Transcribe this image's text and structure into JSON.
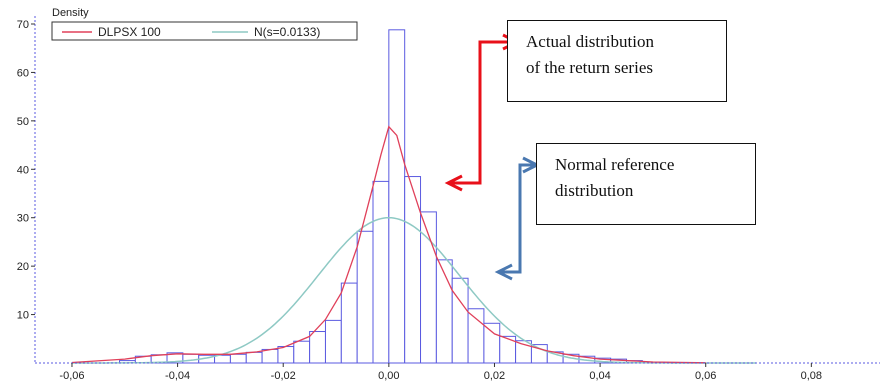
{
  "chart_data": {
    "type": "bar",
    "ylabel": "Density",
    "xlim": [
      -0.067,
      0.093
    ],
    "ylim": [
      0,
      70
    ],
    "xticks": [
      -0.06,
      -0.04,
      -0.02,
      0.0,
      0.02,
      0.04,
      0.06,
      0.08
    ],
    "xtick_labels": [
      "-0,06",
      "-0,04",
      "-0,02",
      "0,00",
      "0,02",
      "0,04",
      "0,06",
      "0,08"
    ],
    "yticks": [
      10,
      20,
      30,
      40,
      50,
      60,
      70
    ],
    "ytick_labels": [
      "10",
      "20",
      "30",
      "40",
      "50",
      "60",
      "70"
    ],
    "bin_width": 0.003,
    "histogram": {
      "bin_left": [
        -0.051,
        -0.048,
        -0.045,
        -0.042,
        -0.039,
        -0.036,
        -0.033,
        -0.03,
        -0.027,
        -0.024,
        -0.021,
        -0.018,
        -0.015,
        -0.012,
        -0.009,
        -0.006,
        -0.003,
        0.0,
        0.003,
        0.006,
        0.009,
        0.012,
        0.015,
        0.018,
        0.021,
        0.024,
        0.027,
        0.03,
        0.033,
        0.036,
        0.039,
        0.042,
        0.045
      ],
      "density": [
        0.5,
        1.4,
        1.7,
        2.1,
        1.8,
        1.6,
        1.6,
        1.8,
        2.2,
        2.8,
        3.4,
        4.5,
        6.5,
        8.8,
        16.5,
        27.2,
        37.5,
        68.8,
        38.5,
        31.2,
        21.3,
        17.5,
        11.2,
        8.2,
        5.5,
        4.6,
        3.8,
        2.3,
        1.8,
        1.4,
        1.0,
        0.8,
        0.5
      ]
    },
    "series": [
      {
        "name": "DLPSX 100",
        "color": "#e0405a",
        "x": [
          -0.06,
          -0.05,
          -0.045,
          -0.04,
          -0.035,
          -0.03,
          -0.025,
          -0.02,
          -0.015,
          -0.012,
          -0.009,
          -0.006,
          -0.003,
          -0.0015,
          0.0,
          0.0015,
          0.003,
          0.006,
          0.009,
          0.012,
          0.015,
          0.02,
          0.025,
          0.03,
          0.035,
          0.04,
          0.05,
          0.06
        ],
        "y": [
          0.1,
          0.8,
          1.5,
          1.9,
          1.8,
          1.8,
          2.3,
          3.2,
          5.5,
          9.0,
          14.5,
          24.0,
          36.5,
          43.0,
          48.8,
          47.0,
          41.0,
          31.0,
          22.0,
          15.0,
          10.5,
          6.0,
          4.0,
          2.5,
          1.5,
          0.8,
          0.2,
          0.05
        ]
      },
      {
        "name": "N(s=0.0133)",
        "color": "#8ec9c4",
        "mean": 0.0,
        "sd": 0.0133
      }
    ],
    "legend_position": "top-left",
    "annotations": [
      {
        "line1": "Actual distribution",
        "line2": "of the return series",
        "arrow_color": "#e8101a"
      },
      {
        "line1": "Normal reference",
        "line2": "distribution",
        "arrow_color": "#4a78b0"
      }
    ]
  }
}
